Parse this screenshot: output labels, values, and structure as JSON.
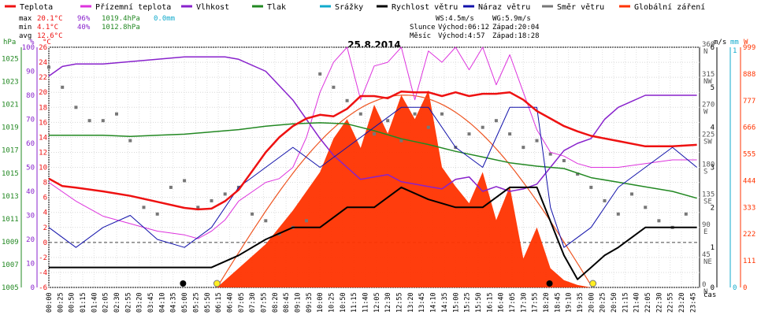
{
  "chart_data": {
    "type": "line",
    "title": "25.8.2014",
    "xlabel": "čas",
    "legend": [
      "Teplota",
      "Přízemní teplota",
      "Vlhkost",
      "Tlak",
      "Srážky",
      "Rychlost větru",
      "Náraz větru",
      "Směr větru",
      "Globální záření"
    ],
    "legend_placement": "top",
    "colors": {
      "temperature": "#ee1111",
      "dew": "#dd33dd",
      "humidity": "#8822cc",
      "pressure": "#228822",
      "rain": "#11aacc",
      "wind": "#000000",
      "gust": "#1111aa",
      "dir": "#777777",
      "solar": "#ff3300",
      "solar_max": "#ee5522"
    },
    "stats": {
      "max": {
        "label": "max",
        "temp": "20.1°C",
        "hum": "96%",
        "press": "1019.4hPa",
        "rain": "0.0mm"
      },
      "min": {
        "label": "min",
        "temp": "4.1°C",
        "hum": "40%",
        "press": "1012.8hPa"
      },
      "avg": {
        "label": "avg",
        "temp": "12.6°C"
      }
    },
    "astro": {
      "ws": "WS:4.5m/s",
      "wg": "WG:5.9m/s",
      "sun_label": "Slunce",
      "sunrise": "Východ:06:12",
      "sunset": "Západ:20:04",
      "moon_label": "Měsíc",
      "moonrise": "Východ:4:57",
      "moonset": "Západ:18:28"
    },
    "axes": {
      "hpa_label": "hPa",
      "hum_label": "%",
      "temp_label": "°C",
      "hpa_ticks": [
        "1025",
        "1023",
        "1021",
        "1019",
        "1017",
        "1015",
        "1013",
        "1011",
        "1009",
        "1007",
        "1005"
      ],
      "hum_ticks": [
        "100",
        "90",
        "80",
        "70",
        "60",
        "50",
        "40",
        "30",
        "20",
        "10",
        "0"
      ],
      "temp_ticks": [
        "26",
        "24",
        "22",
        "20",
        "18",
        "16",
        "14",
        "12",
        "10",
        "8",
        "6",
        "4",
        "2",
        "0",
        "-2",
        "-4",
        "-6"
      ],
      "ms_label": "m/s",
      "mm_label": "mm",
      "w_label": "W",
      "dir_ticks": [
        "360",
        "315",
        "270",
        "225",
        "180",
        "135",
        "90",
        "45",
        "0"
      ],
      "dir_letters": [
        "N",
        "NW",
        "W",
        "SW",
        "S",
        "SE",
        "E",
        "NE",
        "N"
      ],
      "ms_ticks": [
        "6",
        "5",
        "4",
        "3",
        "2",
        "1",
        "0"
      ],
      "mm_ticks": [
        "1",
        "0"
      ],
      "w_ticks": [
        "999",
        "888",
        "777",
        "666",
        "555",
        "444",
        "333",
        "222",
        "111",
        "0"
      ],
      "x_ticks": [
        "00:00",
        "00:25",
        "00:50",
        "01:15",
        "01:40",
        "02:05",
        "02:30",
        "02:55",
        "03:20",
        "03:45",
        "04:10",
        "04:35",
        "05:00",
        "05:25",
        "05:50",
        "06:15",
        "06:40",
        "07:05",
        "07:30",
        "07:55",
        "08:20",
        "08:45",
        "09:10",
        "09:35",
        "10:00",
        "10:25",
        "10:50",
        "11:15",
        "11:40",
        "12:05",
        "12:30",
        "12:55",
        "13:20",
        "13:45",
        "14:10",
        "14:35",
        "15:00",
        "15:25",
        "15:50",
        "16:15",
        "16:40",
        "17:05",
        "17:30",
        "17:55",
        "18:20",
        "18:45",
        "19:10",
        "19:35",
        "20:00",
        "20:25",
        "20:50",
        "21:15",
        "21:40",
        "22:05",
        "22:30",
        "22:55",
        "23:20",
        "23:45"
      ],
      "temp_range": [
        -6,
        26
      ],
      "hum_range": [
        0,
        100
      ],
      "press_range": [
        1005,
        1026
      ],
      "dir_range": [
        0,
        360
      ],
      "ms_range": [
        0,
        6
      ],
      "w_range": [
        0,
        999
      ]
    },
    "series": [
      {
        "name": "Teplota",
        "unit": "°C",
        "x": [
          0,
          0.5,
          1,
          2,
          3,
          4,
          5,
          5.5,
          6,
          6.5,
          7,
          7.5,
          8,
          8.5,
          9,
          9.5,
          10,
          10.5,
          11,
          11.5,
          12,
          12.5,
          13,
          13.5,
          14,
          14.5,
          15,
          15.5,
          16,
          16.5,
          17,
          17.5,
          18,
          18.5,
          19,
          19.5,
          20,
          21,
          22,
          23,
          23.9
        ],
        "y": [
          8.5,
          7.5,
          7.3,
          6.8,
          6.2,
          5.4,
          4.6,
          4.4,
          4.5,
          5.5,
          7.0,
          9.5,
          12.0,
          14.0,
          15.5,
          16.5,
          17.0,
          16.8,
          17.8,
          19.5,
          19.5,
          19.2,
          20.1,
          20.0,
          20.0,
          19.5,
          20.0,
          19.5,
          19.8,
          19.8,
          20.0,
          19.0,
          17.5,
          16.5,
          15.5,
          14.8,
          14.2,
          13.5,
          12.8,
          12.8,
          13.0
        ]
      },
      {
        "name": "Přízemní teplota",
        "unit": "°C",
        "x": [
          0,
          1,
          2,
          3,
          4,
          5,
          5.5,
          6,
          6.5,
          7,
          8,
          8.5,
          9,
          9.5,
          10,
          10.5,
          11,
          11.5,
          12,
          12.5,
          13,
          13.5,
          14,
          14.5,
          15,
          15.5,
          16,
          16.5,
          17,
          17.5,
          18,
          18.5,
          19,
          19.5,
          20,
          21,
          22,
          23,
          23.9
        ],
        "y": [
          8.0,
          5.5,
          3.5,
          2.5,
          1.5,
          1.0,
          0.5,
          1.5,
          3.0,
          5.5,
          8.0,
          8.5,
          10.0,
          14.0,
          20.0,
          24.0,
          26.0,
          19.0,
          23.5,
          24.0,
          26.0,
          19.0,
          25.5,
          24.0,
          26.0,
          23.0,
          26.0,
          21.0,
          25.0,
          20.0,
          15.0,
          12.0,
          11.5,
          10.5,
          10.0,
          10.0,
          10.5,
          11.0,
          11.0
        ]
      },
      {
        "name": "Vlhkost",
        "unit": "%",
        "x": [
          0,
          0.5,
          1,
          2,
          3,
          4,
          5,
          6,
          6.5,
          7,
          8,
          9,
          10,
          10.5,
          11,
          11.5,
          12,
          12.5,
          13,
          13.5,
          14,
          14.5,
          15,
          15.5,
          16,
          16.5,
          17,
          17.5,
          18,
          18.5,
          19,
          19.5,
          20,
          20.5,
          21,
          22,
          23,
          23.9
        ],
        "y": [
          88,
          92,
          93,
          93,
          94,
          95,
          96,
          96,
          96,
          95,
          90,
          78,
          62,
          55,
          50,
          45,
          46,
          47,
          44,
          43,
          42,
          41,
          45,
          46,
          40,
          42,
          40,
          41,
          43,
          50,
          57,
          60,
          62,
          70,
          75,
          80,
          80,
          80
        ]
      },
      {
        "name": "Tlak",
        "unit": "hPa",
        "x": [
          0,
          1,
          2,
          3,
          4,
          5,
          6,
          7,
          8,
          9,
          10,
          11,
          12,
          13,
          14,
          15,
          16,
          17,
          18,
          19,
          20,
          21,
          22,
          23,
          23.9
        ],
        "y": [
          1018.3,
          1018.3,
          1018.3,
          1018.2,
          1018.3,
          1018.4,
          1018.6,
          1018.8,
          1019.1,
          1019.3,
          1019.4,
          1019.3,
          1018.7,
          1018.0,
          1017.5,
          1016.9,
          1016.4,
          1015.9,
          1015.6,
          1015.4,
          1014.6,
          1014.2,
          1013.8,
          1013.4,
          1012.8
        ]
      },
      {
        "name": "Rychlost větru",
        "unit": "m/s",
        "x": [
          0,
          1,
          2,
          3,
          4,
          5,
          6,
          7,
          8,
          9,
          10,
          11,
          12,
          13,
          14,
          15,
          16,
          17,
          18,
          19,
          19.5,
          20,
          20.5,
          21,
          22,
          23,
          23.9
        ],
        "y": [
          0.5,
          0.5,
          0.5,
          0.5,
          0.5,
          0.5,
          0.5,
          0.8,
          1.2,
          1.5,
          1.5,
          2.0,
          2.0,
          2.5,
          2.2,
          2.0,
          2.0,
          2.5,
          2.5,
          0.8,
          0.2,
          0.5,
          0.8,
          1.0,
          1.5,
          1.5,
          1.5
        ]
      },
      {
        "name": "Náraz větru",
        "unit": "m/s",
        "x": [
          0,
          1,
          2,
          3,
          4,
          5,
          6,
          7,
          8,
          9,
          10,
          11,
          12,
          13,
          14,
          15,
          16,
          17,
          18,
          18.5,
          19,
          20,
          21,
          22,
          23,
          23.9
        ],
        "y": [
          1.5,
          1.0,
          1.5,
          1.8,
          1.2,
          1.0,
          1.5,
          2.5,
          3.0,
          3.5,
          3.0,
          3.5,
          4.0,
          4.5,
          4.5,
          3.5,
          3.0,
          4.5,
          4.5,
          2.0,
          1.0,
          1.5,
          2.5,
          3.0,
          3.5,
          3.0
        ]
      },
      {
        "name": "Globální záření",
        "unit": "W",
        "x": [
          6.2,
          7,
          8,
          9,
          10,
          10.5,
          11,
          11.5,
          12,
          12.5,
          13,
          13.5,
          14,
          14.5,
          15,
          15.5,
          16,
          16.5,
          17,
          17.5,
          18,
          18.5,
          19,
          19.5,
          20
        ],
        "y": [
          0,
          80,
          180,
          320,
          480,
          620,
          700,
          580,
          760,
          640,
          800,
          700,
          820,
          500,
          420,
          350,
          480,
          280,
          420,
          120,
          250,
          80,
          30,
          10,
          0
        ]
      },
      {
        "name": "Směr větru",
        "unit": "°",
        "x": [
          0,
          0.5,
          1,
          1.5,
          2,
          2.5,
          3,
          3.5,
          4,
          4.5,
          5,
          5.5,
          6,
          6.5,
          7,
          7.5,
          8,
          8.5,
          9,
          9.5,
          10,
          10.5,
          11,
          11.5,
          12,
          12.5,
          13,
          13.5,
          14,
          14.5,
          15,
          15.5,
          16,
          16.5,
          17,
          17.5,
          18,
          18.5,
          19,
          19.5,
          20,
          20.5,
          21,
          21.5,
          22,
          22.5,
          23,
          23.5
        ],
        "y": [
          330,
          300,
          270,
          250,
          250,
          260,
          220,
          120,
          110,
          150,
          160,
          120,
          130,
          140,
          150,
          110,
          100,
          80,
          90,
          100,
          320,
          300,
          280,
          260,
          230,
          250,
          220,
          260,
          240,
          260,
          210,
          230,
          240,
          250,
          230,
          210,
          220,
          200,
          190,
          170,
          150,
          130,
          110,
          140,
          120,
          100,
          90,
          110
        ]
      }
    ]
  }
}
